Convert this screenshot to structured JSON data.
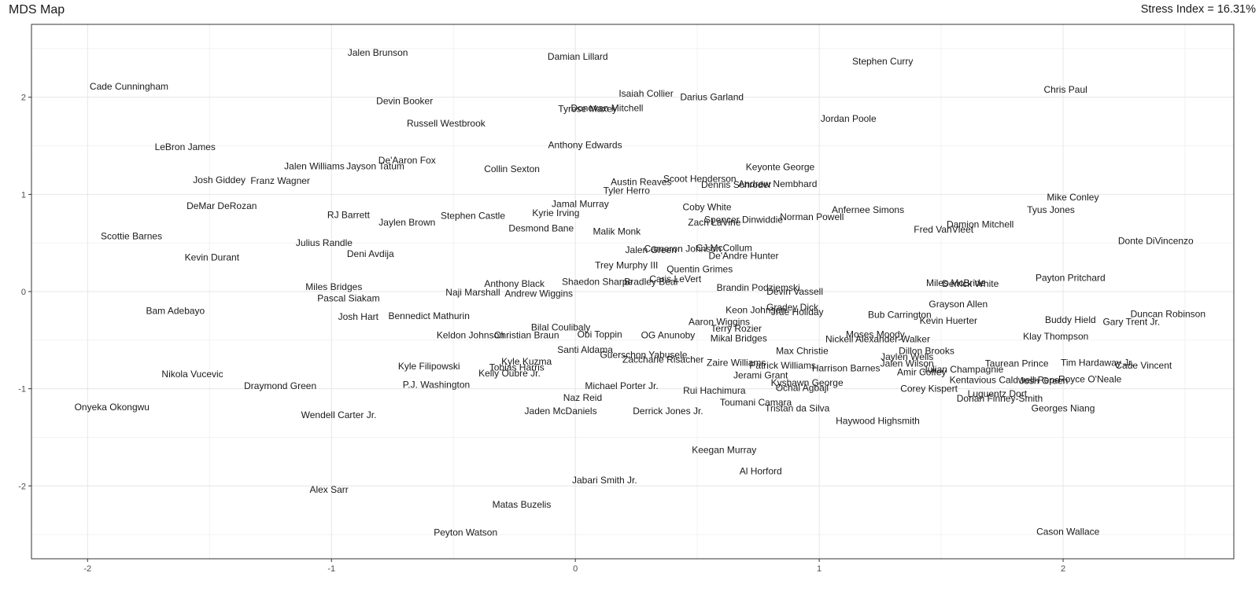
{
  "header": {
    "title": "MDS Map",
    "stress_label": "Stress Index = 16.31%"
  },
  "chart_data": {
    "type": "scatter",
    "title": "MDS Map",
    "xlabel": "",
    "ylabel": "",
    "xlim": [
      -2.23,
      2.7
    ],
    "ylim": [
      -2.75,
      2.75
    ],
    "xticks": [
      -2,
      -1,
      0,
      1,
      2
    ],
    "xtick_labels": [
      "-2",
      "-1",
      "0",
      "1",
      "2"
    ],
    "yticks": [
      -2,
      -1,
      0,
      1,
      2
    ],
    "ytick_labels": [
      "-2",
      "-1",
      "0",
      "1",
      "2"
    ],
    "grid": true,
    "annotation": "Stress Index = 16.31%",
    "points": [
      {
        "label": "Jalen Brunson",
        "x": -0.81,
        "y": 2.46
      },
      {
        "label": "Damian Lillard",
        "x": 0.01,
        "y": 2.42
      },
      {
        "label": "Stephen Curry",
        "x": 1.26,
        "y": 2.37
      },
      {
        "label": "Cade Cunningham",
        "x": -1.83,
        "y": 2.11
      },
      {
        "label": "Chris Paul",
        "x": 2.01,
        "y": 2.08
      },
      {
        "label": "Isaiah Collier",
        "x": 0.29,
        "y": 2.04
      },
      {
        "label": "Darius Garland",
        "x": 0.56,
        "y": 2.0
      },
      {
        "label": "Devin Booker",
        "x": -0.7,
        "y": 1.96
      },
      {
        "label": "Tyrese Maxey",
        "x": 0.05,
        "y": 1.88
      },
      {
        "label": "Donovan Mitchell",
        "x": 0.13,
        "y": 1.89
      },
      {
        "label": "Jordan Poole",
        "x": 1.12,
        "y": 1.78
      },
      {
        "label": "Russell Westbrook",
        "x": -0.53,
        "y": 1.73
      },
      {
        "label": "LeBron James",
        "x": -1.6,
        "y": 1.49
      },
      {
        "label": "Anthony Edwards",
        "x": 0.04,
        "y": 1.51
      },
      {
        "label": "De'Aaron Fox",
        "x": -0.69,
        "y": 1.35
      },
      {
        "label": "Jalen Williams",
        "x": -1.07,
        "y": 1.29
      },
      {
        "label": "Jayson Tatum",
        "x": -0.82,
        "y": 1.29
      },
      {
        "label": "Keyonte George",
        "x": 0.84,
        "y": 1.28
      },
      {
        "label": "Collin Sexton",
        "x": -0.26,
        "y": 1.26
      },
      {
        "label": "Josh Giddey",
        "x": -1.46,
        "y": 1.15
      },
      {
        "label": "Franz Wagner",
        "x": -1.21,
        "y": 1.14
      },
      {
        "label": "Scoot Henderson",
        "x": 0.51,
        "y": 1.16
      },
      {
        "label": "Austin Reaves",
        "x": 0.27,
        "y": 1.13
      },
      {
        "label": "Dennis Schroder",
        "x": 0.66,
        "y": 1.1
      },
      {
        "label": "Andrew Nembhard",
        "x": 0.83,
        "y": 1.11
      },
      {
        "label": "Tyler Herro",
        "x": 0.21,
        "y": 1.04
      },
      {
        "label": "Jamal Murray",
        "x": 0.02,
        "y": 0.9
      },
      {
        "label": "DeMar DeRozan",
        "x": -1.45,
        "y": 0.88
      },
      {
        "label": "Coby White",
        "x": 0.54,
        "y": 0.87
      },
      {
        "label": "Anfernee Simons",
        "x": 1.2,
        "y": 0.84
      },
      {
        "label": "RJ Barrett",
        "x": -0.93,
        "y": 0.79
      },
      {
        "label": "Kyrie Irving",
        "x": -0.08,
        "y": 0.81
      },
      {
        "label": "Stephen Castle",
        "x": -0.42,
        "y": 0.78
      },
      {
        "label": "Mike Conley",
        "x": 2.04,
        "y": 0.97
      },
      {
        "label": "Tyus Jones",
        "x": 1.95,
        "y": 0.84
      },
      {
        "label": "Spencer Dinwiddie",
        "x": 0.69,
        "y": 0.74
      },
      {
        "label": "Zach LaVine",
        "x": 0.57,
        "y": 0.71
      },
      {
        "label": "Norman Powell",
        "x": 0.97,
        "y": 0.77
      },
      {
        "label": "Jaylen Brown",
        "x": -0.69,
        "y": 0.71
      },
      {
        "label": "Damion Mitchell",
        "x": 1.66,
        "y": 0.69
      },
      {
        "label": "Desmond Bane",
        "x": -0.14,
        "y": 0.65
      },
      {
        "label": "Fred VanVleet",
        "x": 1.51,
        "y": 0.64
      },
      {
        "label": "Malik Monk",
        "x": 0.17,
        "y": 0.62
      },
      {
        "label": "Scottie Barnes",
        "x": -1.82,
        "y": 0.57
      },
      {
        "label": "Donte DiVincenzo",
        "x": 2.38,
        "y": 0.52
      },
      {
        "label": "Julius Randle",
        "x": -1.03,
        "y": 0.5
      },
      {
        "label": "Cameron Johnson",
        "x": 0.44,
        "y": 0.44
      },
      {
        "label": "CJ McCollum",
        "x": 0.61,
        "y": 0.45
      },
      {
        "label": "Jalen Green",
        "x": 0.31,
        "y": 0.43
      },
      {
        "label": "Deni Avdija",
        "x": -0.84,
        "y": 0.39
      },
      {
        "label": "Kevin Durant",
        "x": -1.49,
        "y": 0.35
      },
      {
        "label": "De'Andre Hunter",
        "x": 0.69,
        "y": 0.37
      },
      {
        "label": "Trey Murphy III",
        "x": 0.21,
        "y": 0.27
      },
      {
        "label": "Quentin Grimes",
        "x": 0.51,
        "y": 0.23
      },
      {
        "label": "Payton Pritchard",
        "x": 2.03,
        "y": 0.14
      },
      {
        "label": "Caris LeVert",
        "x": 0.41,
        "y": 0.13
      },
      {
        "label": "Shaedon Sharpe",
        "x": 0.09,
        "y": 0.1
      },
      {
        "label": "Bradley Beal",
        "x": 0.31,
        "y": 0.1
      },
      {
        "label": "Anthony Black",
        "x": -0.25,
        "y": 0.08
      },
      {
        "label": "Miles McBride",
        "x": 1.56,
        "y": 0.09
      },
      {
        "label": "Derrick White",
        "x": 1.62,
        "y": 0.08
      },
      {
        "label": "Brandin Podziemski",
        "x": 0.75,
        "y": 0.04
      },
      {
        "label": "Miles Bridges",
        "x": -0.99,
        "y": 0.05
      },
      {
        "label": "Devin Vassell",
        "x": 0.9,
        "y": 0.0
      },
      {
        "label": "Naji Marshall",
        "x": -0.42,
        "y": -0.01
      },
      {
        "label": "Andrew Wiggins",
        "x": -0.15,
        "y": -0.02
      },
      {
        "label": "Pascal Siakam",
        "x": -0.93,
        "y": -0.07
      },
      {
        "label": "Grayson Allen",
        "x": 1.57,
        "y": -0.13
      },
      {
        "label": "Keon Johnson",
        "x": 0.74,
        "y": -0.19
      },
      {
        "label": "Gradey Dick",
        "x": 0.89,
        "y": -0.16
      },
      {
        "label": "Jrue Holiday",
        "x": 0.91,
        "y": -0.21
      },
      {
        "label": "Bam Adebayo",
        "x": -1.64,
        "y": -0.2
      },
      {
        "label": "Bub Carrington",
        "x": 1.33,
        "y": -0.24
      },
      {
        "label": "Duncan Robinson",
        "x": 2.43,
        "y": -0.23
      },
      {
        "label": "Josh Hart",
        "x": -0.89,
        "y": -0.26
      },
      {
        "label": "Bennedict Mathurin",
        "x": -0.6,
        "y": -0.25
      },
      {
        "label": "Kevin Huerter",
        "x": 1.53,
        "y": -0.3
      },
      {
        "label": "Buddy Hield",
        "x": 2.03,
        "y": -0.29
      },
      {
        "label": "Gary Trent Jr.",
        "x": 2.28,
        "y": -0.31
      },
      {
        "label": "Aaron Wiggins",
        "x": 0.59,
        "y": -0.31
      },
      {
        "label": "Bilal Coulibaly",
        "x": -0.06,
        "y": -0.37
      },
      {
        "label": "Terry Rozier",
        "x": 0.66,
        "y": -0.38
      },
      {
        "label": "Keldon Johnson",
        "x": -0.43,
        "y": -0.45
      },
      {
        "label": "Christian Braun",
        "x": -0.2,
        "y": -0.45
      },
      {
        "label": "Obi Toppin",
        "x": 0.1,
        "y": -0.44
      },
      {
        "label": "OG Anunoby",
        "x": 0.38,
        "y": -0.45
      },
      {
        "label": "Moses Moody",
        "x": 1.23,
        "y": -0.44
      },
      {
        "label": "Mikal Bridges",
        "x": 0.67,
        "y": -0.48
      },
      {
        "label": "Nickeil Alexander-Walker",
        "x": 1.24,
        "y": -0.49
      },
      {
        "label": "Klay Thompson",
        "x": 1.97,
        "y": -0.46
      },
      {
        "label": "Santi Aldama",
        "x": 0.04,
        "y": -0.6
      },
      {
        "label": "Max Christie",
        "x": 0.93,
        "y": -0.61
      },
      {
        "label": "Dillon Brooks",
        "x": 1.44,
        "y": -0.61
      },
      {
        "label": "Guerschon Yabusele",
        "x": 0.28,
        "y": -0.65
      },
      {
        "label": "Jaylen Wells",
        "x": 1.36,
        "y": -0.67
      },
      {
        "label": "Zaccharie Risacher",
        "x": 0.36,
        "y": -0.7
      },
      {
        "label": "Kyle Kuzma",
        "x": -0.2,
        "y": -0.72
      },
      {
        "label": "Jalen Wilson",
        "x": 1.36,
        "y": -0.74
      },
      {
        "label": "Zaire Williams",
        "x": 0.66,
        "y": -0.73
      },
      {
        "label": "Tim Hardaway Jr.",
        "x": 2.14,
        "y": -0.73
      },
      {
        "label": "Taurean Prince",
        "x": 1.81,
        "y": -0.74
      },
      {
        "label": "Cade Vincent",
        "x": 2.33,
        "y": -0.76
      },
      {
        "label": "Patrick Williams",
        "x": 0.85,
        "y": -0.76
      },
      {
        "label": "Kyle Filipowski",
        "x": -0.6,
        "y": -0.77
      },
      {
        "label": "Tobias Harris",
        "x": -0.24,
        "y": -0.78
      },
      {
        "label": "Harrison Barnes",
        "x": 1.11,
        "y": -0.79
      },
      {
        "label": "Julian Champagnie",
        "x": 1.59,
        "y": -0.8
      },
      {
        "label": "Amir Coffey",
        "x": 1.42,
        "y": -0.83
      },
      {
        "label": "Kelly Oubre Jr.",
        "x": -0.27,
        "y": -0.84
      },
      {
        "label": "Nikola Vucevic",
        "x": -1.57,
        "y": -0.85
      },
      {
        "label": "Jerami Grant",
        "x": 0.76,
        "y": -0.86
      },
      {
        "label": "Royce O'Neale",
        "x": 2.11,
        "y": -0.9
      },
      {
        "label": "Kentavious Caldwell-Pope",
        "x": 1.76,
        "y": -0.91
      },
      {
        "label": "Josh Green",
        "x": 1.92,
        "y": -0.92
      },
      {
        "label": "Kyshawn George",
        "x": 0.95,
        "y": -0.94
      },
      {
        "label": "P.J. Washington",
        "x": -0.57,
        "y": -0.96
      },
      {
        "label": "Draymond Green",
        "x": -1.21,
        "y": -0.97
      },
      {
        "label": "Michael Porter Jr.",
        "x": 0.19,
        "y": -0.97
      },
      {
        "label": "Ochai Agbaji",
        "x": 0.93,
        "y": -0.99
      },
      {
        "label": "Corey Kispert",
        "x": 1.45,
        "y": -1.0
      },
      {
        "label": "Rui Hachimura",
        "x": 0.57,
        "y": -1.02
      },
      {
        "label": "Luguentz Dort",
        "x": 1.73,
        "y": -1.05
      },
      {
        "label": "Naz Reid",
        "x": 0.03,
        "y": -1.09
      },
      {
        "label": "Dorian Finney-Smith",
        "x": 1.74,
        "y": -1.1
      },
      {
        "label": "Toumani Camara",
        "x": 0.74,
        "y": -1.14
      },
      {
        "label": "Onyeka Okongwu",
        "x": -1.9,
        "y": -1.19
      },
      {
        "label": "Tristan da Silva",
        "x": 0.91,
        "y": -1.2
      },
      {
        "label": "Georges Niang",
        "x": 2.0,
        "y": -1.2
      },
      {
        "label": "Jaden McDaniels",
        "x": -0.06,
        "y": -1.23
      },
      {
        "label": "Derrick Jones Jr.",
        "x": 0.38,
        "y": -1.23
      },
      {
        "label": "Wendell Carter Jr.",
        "x": -0.97,
        "y": -1.27
      },
      {
        "label": "Haywood Highsmith",
        "x": 1.24,
        "y": -1.33
      },
      {
        "label": "Keegan Murray",
        "x": 0.61,
        "y": -1.63
      },
      {
        "label": "Al Horford",
        "x": 0.76,
        "y": -1.85
      },
      {
        "label": "Jabari Smith Jr.",
        "x": 0.12,
        "y": -1.94
      },
      {
        "label": "Alex Sarr",
        "x": -1.01,
        "y": -2.04
      },
      {
        "label": "Matas Buzelis",
        "x": -0.22,
        "y": -2.19
      },
      {
        "label": "Peyton Watson",
        "x": -0.45,
        "y": -2.48
      },
      {
        "label": "Cason Wallace",
        "x": 2.02,
        "y": -2.47
      }
    ]
  }
}
